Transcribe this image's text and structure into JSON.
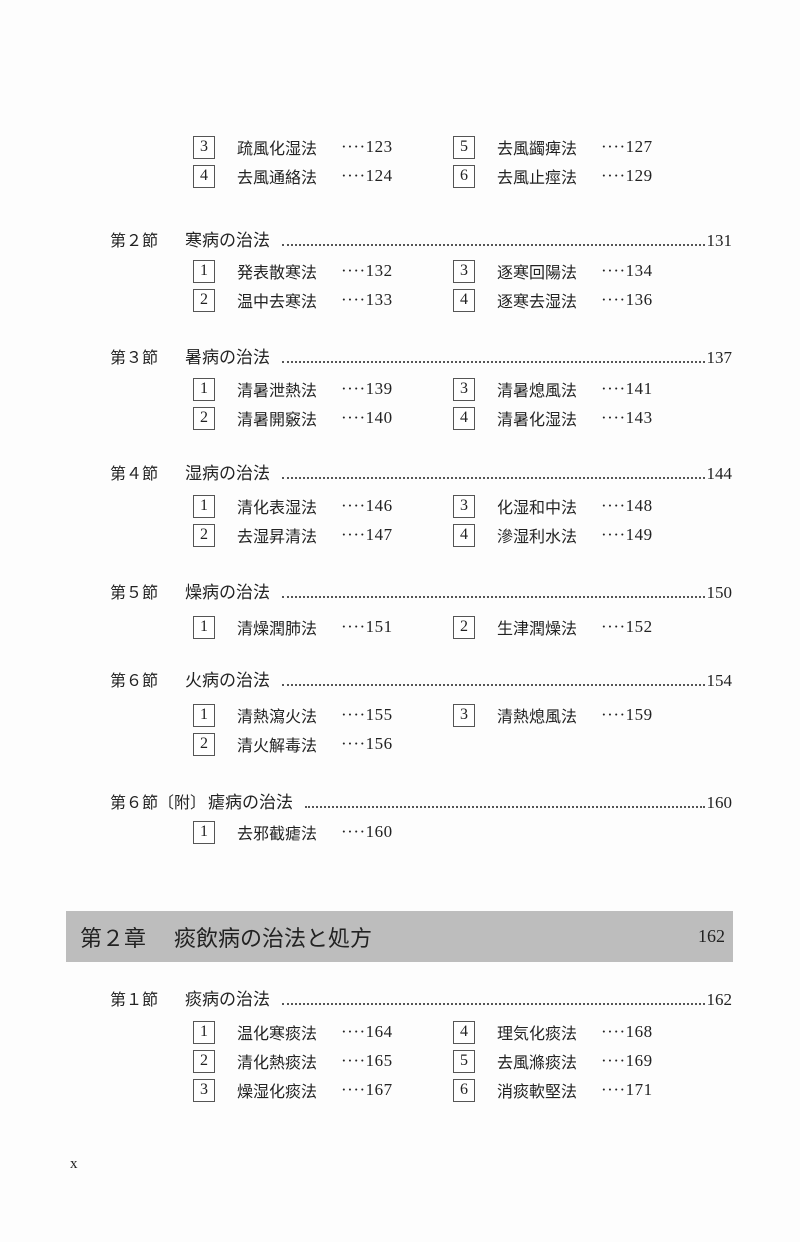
{
  "blocks": [
    {
      "type": "items",
      "items": [
        [
          "3",
          "疏風化湿法",
          "123"
        ],
        [
          "5",
          "去風蠲痺法",
          "127"
        ],
        [
          "4",
          "去風通絡法",
          "124"
        ],
        [
          "6",
          "去風止痙法",
          "129"
        ]
      ]
    },
    {
      "type": "section",
      "label": "第２節",
      "title": "寒病の治法",
      "page": "131"
    },
    {
      "type": "items",
      "items": [
        [
          "1",
          "発表散寒法",
          "132"
        ],
        [
          "3",
          "逐寒回陽法",
          "134"
        ],
        [
          "2",
          "温中去寒法",
          "133"
        ],
        [
          "4",
          "逐寒去湿法",
          "136"
        ]
      ]
    },
    {
      "type": "section",
      "label": "第３節",
      "title": "暑病の治法",
      "page": "137"
    },
    {
      "type": "items",
      "items": [
        [
          "1",
          "清暑泄熱法",
          "139"
        ],
        [
          "3",
          "清暑熄風法",
          "141"
        ],
        [
          "2",
          "清暑開竅法",
          "140"
        ],
        [
          "4",
          "清暑化湿法",
          "143"
        ]
      ]
    },
    {
      "type": "section",
      "label": "第４節",
      "title": "湿病の治法",
      "page": "144"
    },
    {
      "type": "items",
      "items": [
        [
          "1",
          "清化表湿法",
          "146"
        ],
        [
          "3",
          "化湿和中法",
          "148"
        ],
        [
          "2",
          "去湿昇清法",
          "147"
        ],
        [
          "4",
          "滲湿利水法",
          "149"
        ]
      ]
    },
    {
      "type": "section",
      "label": "第５節",
      "title": "燥病の治法",
      "page": "150"
    },
    {
      "type": "items",
      "items": [
        [
          "1",
          "清燥潤肺法",
          "151"
        ],
        [
          "2",
          "生津潤燥法",
          "152"
        ]
      ]
    },
    {
      "type": "section",
      "label": "第６節",
      "title": "火病の治法",
      "page": "154"
    },
    {
      "type": "items",
      "items": [
        [
          "1",
          "清熱瀉火法",
          "155"
        ],
        [
          "3",
          "清熱熄風法",
          "159"
        ],
        [
          "2",
          "清火解毒法",
          "156"
        ]
      ]
    },
    {
      "type": "section",
      "label": "第６節〔附〕",
      "title": "瘧病の治法",
      "page": "160"
    },
    {
      "type": "items",
      "items": [
        [
          "1",
          "去邪截瘧法",
          "160"
        ]
      ]
    },
    {
      "type": "chapter",
      "label": "第２章",
      "title": "痰飲病の治法と処方",
      "page": "162"
    },
    {
      "type": "section",
      "label": "第１節",
      "title": "痰病の治法",
      "page": "162"
    },
    {
      "type": "items",
      "items": [
        [
          "1",
          "温化寒痰法",
          "164"
        ],
        [
          "4",
          "理気化痰法",
          "168"
        ],
        [
          "2",
          "清化熱痰法",
          "165"
        ],
        [
          "5",
          "去風滌痰法",
          "169"
        ],
        [
          "3",
          "燥湿化痰法",
          "167"
        ],
        [
          "6",
          "消痰軟堅法",
          "171"
        ]
      ]
    }
  ],
  "leader": "····",
  "folio": "x"
}
